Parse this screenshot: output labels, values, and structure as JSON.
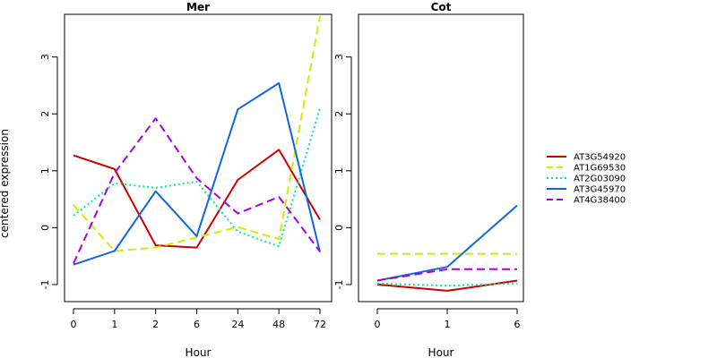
{
  "chart_data": {
    "type": "line",
    "ylabel": "centered expression",
    "ylim": [
      -1.3,
      3.75
    ],
    "yticks": [
      -1,
      0,
      1,
      2,
      3
    ],
    "grid": false,
    "legend_position": "right",
    "series_styles": [
      {
        "name": "AT3G54920",
        "color": "#cc0000",
        "dash": "solid"
      },
      {
        "name": "AT1G69530",
        "color": "#ccee00",
        "dash": "dashed"
      },
      {
        "name": "AT2G03090",
        "color": "#00ee88",
        "dash": "dotted"
      },
      {
        "name": "AT3G45970",
        "color": "#1166dd",
        "dash": "solid"
      },
      {
        "name": "AT4G38400",
        "color": "#aa00dd",
        "dash": "dashed"
      }
    ],
    "panels": [
      {
        "title": "Mer",
        "xlabel": "Hour",
        "categories": [
          "0",
          "1",
          "2",
          "6",
          "24",
          "48",
          "72"
        ],
        "series": [
          {
            "name": "AT3G54920",
            "values": [
              1.27,
              1.03,
              -0.31,
              -0.35,
              0.84,
              1.37,
              0.14
            ]
          },
          {
            "name": "AT1G69530",
            "values": [
              0.4,
              -0.41,
              -0.35,
              -0.17,
              0.01,
              -0.2,
              3.72
            ]
          },
          {
            "name": "AT2G03090",
            "values": [
              0.21,
              0.78,
              0.7,
              0.81,
              -0.07,
              -0.33,
              2.1
            ]
          },
          {
            "name": "AT3G45970",
            "values": [
              -0.65,
              -0.41,
              0.64,
              -0.15,
              2.08,
              2.54,
              -0.43
            ]
          },
          {
            "name": "AT4G38400",
            "values": [
              -0.63,
              0.96,
              1.92,
              0.87,
              0.25,
              0.54,
              -0.42
            ]
          }
        ]
      },
      {
        "title": "Cot",
        "xlabel": "Hour",
        "categories": [
          "0",
          "1",
          "6"
        ],
        "series": [
          {
            "name": "AT3G54920",
            "values": [
              -1.0,
              -1.11,
              -0.93
            ]
          },
          {
            "name": "AT1G69530",
            "values": [
              -0.46,
              -0.46,
              -0.46
            ]
          },
          {
            "name": "AT2G03090",
            "values": [
              -0.98,
              -1.02,
              -0.98
            ]
          },
          {
            "name": "AT3G45970",
            "values": [
              -0.93,
              -0.69,
              0.39
            ]
          },
          {
            "name": "AT4G38400",
            "values": [
              -0.93,
              -0.73,
              -0.73
            ]
          }
        ]
      }
    ]
  }
}
